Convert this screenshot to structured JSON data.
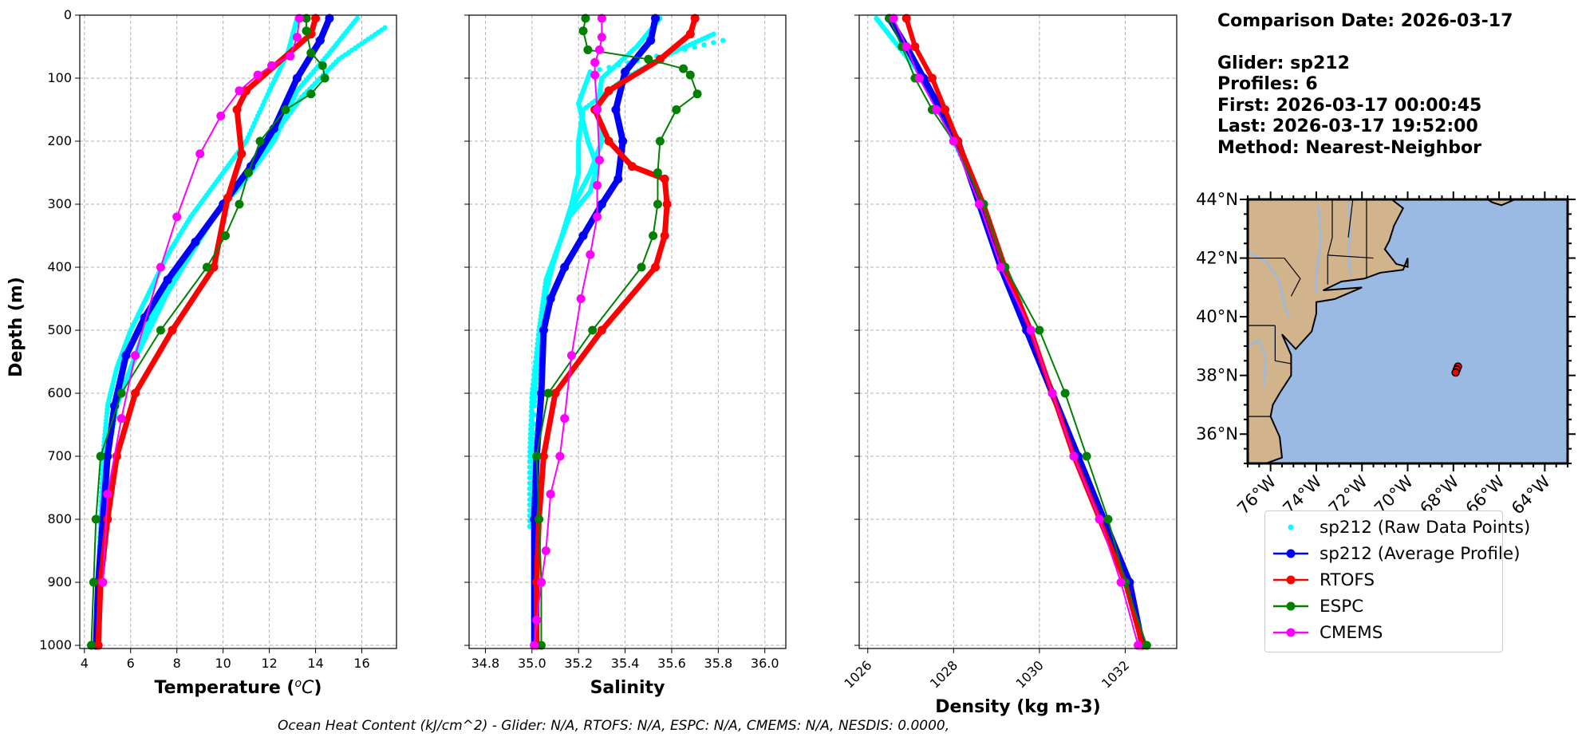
{
  "info": {
    "comparison_date": "Comparison Date: 2026-03-17",
    "glider": "Glider: sp212",
    "profiles": "Profiles: 6",
    "first": "First: 2026-03-17 00:00:45",
    "last": "Last: 2026-03-17 19:52:00",
    "method": "Method: Nearest-Neighbor"
  },
  "footer": "Ocean Heat Content (kJ/cm^2) - Glider: N/A,  RTOFS: N/A,  ESPC: N/A,  CMEMS: N/A,  NESDIS: 0.0000,",
  "legend": [
    {
      "key": "raw",
      "label": "sp212 (Raw Data Points)",
      "color": "#00ffff",
      "style": "dot"
    },
    {
      "key": "avg",
      "label": "sp212 (Average Profile)",
      "color": "#0000ff",
      "style": "line"
    },
    {
      "key": "rtofs",
      "label": "RTOFS",
      "color": "#ff0000",
      "style": "line"
    },
    {
      "key": "espc",
      "label": "ESPC",
      "color": "#008000",
      "style": "line"
    },
    {
      "key": "cmems",
      "label": "CMEMS",
      "color": "#ff00ff",
      "style": "line"
    }
  ],
  "map": {
    "lat_ticks": [
      "36°N",
      "38°N",
      "40°N",
      "42°N",
      "44°N"
    ],
    "lat_values": [
      36,
      38,
      40,
      42,
      44
    ],
    "lon_ticks": [
      "76°W",
      "74°W",
      "72°W",
      "70°W",
      "68°W",
      "66°W",
      "64°W"
    ],
    "lon_values": [
      -76,
      -74,
      -72,
      -70,
      -68,
      -66,
      -64
    ],
    "extent": {
      "lon": [
        -77,
        -63
      ],
      "lat": [
        35,
        44
      ]
    },
    "glider_positions": [
      [
        -67.8,
        38.3
      ],
      [
        -67.85,
        38.2
      ],
      [
        -67.9,
        38.1
      ]
    ],
    "land_color": "#d2b48c",
    "ocean_color": "#9ab9e3"
  },
  "chart_data": [
    {
      "type": "line",
      "xlabel": "Temperature (°C)",
      "ylabel": "Depth (m)",
      "xlim": [
        3.8,
        17.5
      ],
      "ylim": [
        1005,
        0
      ],
      "xticks": [
        4,
        6,
        8,
        10,
        12,
        14,
        16
      ],
      "yticks": [
        0,
        100,
        200,
        300,
        400,
        500,
        600,
        700,
        800,
        900,
        1000
      ],
      "grid": true,
      "raw": [
        {
          "x": [
            13.2,
            12.8,
            12.0,
            11.0,
            9.8,
            8.6,
            7.6,
            6.8,
            6.0,
            5.4,
            5.0,
            4.8,
            4.7,
            4.6,
            4.5
          ],
          "y": [
            5,
            60,
            120,
            200,
            260,
            320,
            380,
            440,
            500,
            560,
            620,
            700,
            800,
            900,
            1000
          ]
        },
        {
          "x": [
            15.8,
            14.6,
            13.2,
            12.2,
            11.0,
            9.6,
            8.4,
            7.4,
            6.6,
            6.0,
            5.4,
            5.0,
            4.8,
            4.6,
            4.5
          ],
          "y": [
            5,
            60,
            120,
            200,
            260,
            320,
            380,
            440,
            500,
            560,
            620,
            700,
            800,
            900,
            1000
          ]
        },
        {
          "x": [
            17.0,
            15.0,
            13.4,
            12.0,
            10.8,
            9.6,
            8.6,
            7.6,
            6.8,
            6.0,
            5.2,
            4.9,
            4.7,
            4.6
          ],
          "y": [
            20,
            70,
            130,
            200,
            260,
            320,
            380,
            440,
            500,
            560,
            640,
            720,
            820,
            1000
          ]
        }
      ],
      "series": [
        {
          "name": "sp212 (Average Profile)",
          "color": "#0000ff",
          "width": 8,
          "x": [
            14.6,
            14.2,
            13.2,
            12.2,
            11.2,
            10.0,
            8.8,
            7.6,
            6.6,
            5.8,
            5.3,
            5.0,
            4.8,
            4.6,
            4.5
          ],
          "y": [
            5,
            40,
            100,
            180,
            240,
            300,
            360,
            420,
            480,
            540,
            620,
            700,
            800,
            900,
            1000
          ]
        },
        {
          "name": "RTOFS",
          "color": "#ff0000",
          "width": 7,
          "x": [
            14.0,
            13.8,
            11.0,
            10.6,
            10.8,
            10.2,
            9.6,
            7.8,
            6.2,
            5.4,
            5.0,
            4.7,
            4.6
          ],
          "y": [
            5,
            30,
            120,
            150,
            220,
            290,
            400,
            500,
            600,
            700,
            800,
            900,
            1000
          ]
        },
        {
          "name": "ESPC",
          "color": "#008000",
          "width": 2,
          "x": [
            13.6,
            13.6,
            13.8,
            14.3,
            14.4,
            13.8,
            12.7,
            11.6,
            11.1,
            10.7,
            10.1,
            9.3,
            7.3,
            5.6,
            4.7,
            4.5,
            4.4,
            4.3
          ],
          "y": [
            5,
            25,
            60,
            80,
            100,
            125,
            150,
            200,
            250,
            300,
            350,
            400,
            500,
            600,
            700,
            800,
            900,
            1000
          ]
        },
        {
          "name": "CMEMS",
          "color": "#ff00ff",
          "width": 2,
          "x": [
            13.3,
            13.2,
            12.9,
            12.1,
            11.5,
            10.7,
            9.9,
            9.0,
            8.0,
            7.3,
            6.2,
            5.6,
            5.0,
            4.8
          ],
          "y": [
            5,
            35,
            65,
            80,
            95,
            120,
            160,
            220,
            320,
            400,
            540,
            640,
            760,
            900
          ]
        }
      ]
    },
    {
      "type": "line",
      "xlabel": "Salinity",
      "ylabel": "",
      "xlim": [
        34.73,
        36.09
      ],
      "ylim": [
        1005,
        0
      ],
      "xticks": [
        34.8,
        35.0,
        35.2,
        35.4,
        35.6,
        35.8,
        36.0
      ],
      "yticks": [
        0,
        100,
        200,
        300,
        400,
        500,
        600,
        700,
        800,
        900,
        1000
      ],
      "grid": true,
      "raw": [
        {
          "x": [
            35.55,
            35.45,
            35.3,
            35.28,
            35.3,
            35.25,
            35.18,
            35.12,
            35.06,
            35.03,
            35.0,
            35.0,
            34.99
          ],
          "y": [
            5,
            50,
            100,
            150,
            200,
            250,
            300,
            360,
            420,
            500,
            600,
            700,
            820
          ]
        },
        {
          "x": [
            35.78,
            35.6,
            35.4,
            35.22,
            35.2,
            35.2,
            35.17,
            35.12,
            35.07,
            35.04,
            35.0,
            34.99,
            34.99
          ],
          "y": [
            30,
            60,
            100,
            150,
            200,
            250,
            300,
            360,
            420,
            500,
            600,
            700,
            820
          ]
        },
        {
          "x": [
            35.82,
            35.25,
            35.2,
            35.24,
            35.28,
            35.25,
            35.16,
            35.1,
            35.06,
            35.03,
            35.01,
            35.0
          ],
          "y": [
            40,
            90,
            140,
            200,
            240,
            280,
            320,
            380,
            440,
            520,
            620,
            820
          ]
        }
      ],
      "series": [
        {
          "name": "sp212 (Average Profile)",
          "color": "#0000ff",
          "width": 8,
          "x": [
            35.53,
            35.51,
            35.4,
            35.36,
            35.39,
            35.37,
            35.3,
            35.22,
            35.14,
            35.08,
            35.05,
            35.04,
            35.02,
            35.01,
            35.01
          ],
          "y": [
            5,
            40,
            90,
            150,
            200,
            260,
            300,
            350,
            400,
            450,
            500,
            600,
            700,
            800,
            1000
          ]
        },
        {
          "name": "RTOFS",
          "color": "#ff0000",
          "width": 7,
          "x": [
            35.7,
            35.68,
            35.55,
            35.33,
            35.27,
            35.33,
            35.43,
            35.57,
            35.58,
            35.57,
            35.53,
            35.3,
            35.1,
            35.05,
            35.03,
            35.02,
            35.02
          ],
          "y": [
            5,
            30,
            70,
            120,
            150,
            200,
            240,
            260,
            300,
            350,
            400,
            500,
            600,
            700,
            800,
            900,
            1000
          ]
        },
        {
          "name": "ESPC",
          "color": "#008000",
          "width": 2,
          "x": [
            35.23,
            35.22,
            35.24,
            35.5,
            35.65,
            35.68,
            35.71,
            35.62,
            35.55,
            35.54,
            35.54,
            35.52,
            35.47,
            35.26,
            35.07,
            35.02,
            35.03,
            35.04,
            35.04
          ],
          "y": [
            5,
            25,
            55,
            70,
            85,
            95,
            125,
            150,
            200,
            250,
            300,
            350,
            400,
            500,
            600,
            700,
            800,
            900,
            1000
          ]
        },
        {
          "name": "CMEMS",
          "color": "#ff00ff",
          "width": 2,
          "x": [
            35.3,
            35.3,
            35.29,
            35.27,
            35.27,
            35.28,
            35.29,
            35.28,
            35.28,
            35.25,
            35.21,
            35.17,
            35.14,
            35.12,
            35.08,
            35.06,
            35.04,
            35.02,
            35.01
          ],
          "y": [
            5,
            35,
            55,
            75,
            95,
            150,
            230,
            270,
            320,
            380,
            450,
            540,
            640,
            700,
            760,
            850,
            900,
            960,
            1000
          ]
        }
      ]
    },
    {
      "type": "line",
      "xlabel": "Density (kg m-3)",
      "ylabel": "",
      "xlim": [
        1025.8,
        1033.2
      ],
      "ylim": [
        1005,
        0
      ],
      "xticks": [
        1026,
        1028,
        1030,
        1032
      ],
      "yticks": [
        0,
        100,
        200,
        300,
        400,
        500,
        600,
        700,
        800,
        900,
        1000
      ],
      "grid": true,
      "raw": [
        {
          "x": [
            1026.2,
            1026.6,
            1027.3,
            1028.0,
            1028.7,
            1029.2,
            1029.6
          ],
          "y": [
            5,
            40,
            100,
            200,
            300,
            400,
            460
          ]
        }
      ],
      "series": [
        {
          "name": "sp212 (Average Profile)",
          "color": "#0000ff",
          "width": 8,
          "x": [
            1026.5,
            1026.9,
            1027.3,
            1027.7,
            1028.1,
            1028.6,
            1029.1,
            1029.7,
            1030.3,
            1030.9,
            1031.5,
            1032.1,
            1032.4
          ],
          "y": [
            5,
            50,
            100,
            150,
            200,
            300,
            400,
            500,
            600,
            700,
            800,
            900,
            1000
          ]
        },
        {
          "name": "RTOFS",
          "color": "#ff0000",
          "width": 6,
          "x": [
            1026.9,
            1027.1,
            1027.5,
            1027.8,
            1028.1,
            1028.7,
            1029.2,
            1029.8,
            1030.3,
            1030.8,
            1031.4,
            1032.0,
            1032.4
          ],
          "y": [
            5,
            50,
            100,
            150,
            200,
            300,
            400,
            500,
            600,
            700,
            800,
            900,
            1000
          ]
        },
        {
          "name": "ESPC",
          "color": "#008000",
          "width": 2,
          "x": [
            1026.5,
            1026.8,
            1027.1,
            1027.5,
            1028.0,
            1028.7,
            1029.2,
            1030.0,
            1030.6,
            1031.1,
            1031.6,
            1032.0,
            1032.5
          ],
          "y": [
            5,
            50,
            100,
            150,
            200,
            300,
            400,
            500,
            600,
            700,
            800,
            900,
            1000
          ]
        },
        {
          "name": "CMEMS",
          "color": "#ff00ff",
          "width": 2,
          "x": [
            1026.6,
            1026.9,
            1027.2,
            1027.6,
            1028.0,
            1028.6,
            1029.1,
            1029.8,
            1030.3,
            1030.8,
            1031.4,
            1031.9,
            1032.3
          ],
          "y": [
            5,
            50,
            100,
            150,
            200,
            300,
            400,
            500,
            600,
            700,
            800,
            900,
            1000
          ]
        }
      ]
    }
  ]
}
